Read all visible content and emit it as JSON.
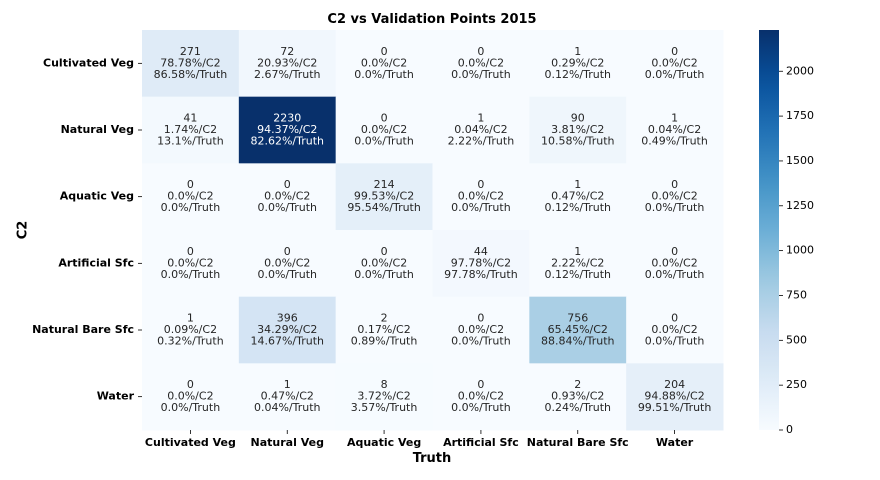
{
  "chart_data": {
    "type": "heatmap",
    "title": "C2 vs Validation Points 2015",
    "xlabel": "Truth",
    "ylabel": "C2",
    "x_categories": [
      "Cultivated Veg",
      "Natural Veg",
      "Aquatic Veg",
      "Artificial Sfc",
      "Natural Bare Sfc",
      "Water"
    ],
    "y_categories": [
      "Cultivated Veg",
      "Natural Veg",
      "Aquatic Veg",
      "Artificial Sfc",
      "Natural Bare Sfc",
      "Water"
    ],
    "values": [
      [
        271,
        72,
        0,
        0,
        1,
        0
      ],
      [
        41,
        2230,
        0,
        1,
        90,
        1
      ],
      [
        0,
        0,
        214,
        0,
        1,
        0
      ],
      [
        0,
        0,
        0,
        44,
        1,
        0
      ],
      [
        1,
        396,
        2,
        0,
        756,
        0
      ],
      [
        0,
        1,
        8,
        0,
        2,
        204
      ]
    ],
    "pct_c2": [
      [
        "78.78%/C2",
        "20.93%/C2",
        "0.0%/C2",
        "0.0%/C2",
        "0.29%/C2",
        "0.0%/C2"
      ],
      [
        "1.74%/C2",
        "94.37%/C2",
        "0.0%/C2",
        "0.04%/C2",
        "3.81%/C2",
        "0.04%/C2"
      ],
      [
        "0.0%/C2",
        "0.0%/C2",
        "99.53%/C2",
        "0.0%/C2",
        "0.47%/C2",
        "0.0%/C2"
      ],
      [
        "0.0%/C2",
        "0.0%/C2",
        "0.0%/C2",
        "97.78%/C2",
        "2.22%/C2",
        "0.0%/C2"
      ],
      [
        "0.09%/C2",
        "34.29%/C2",
        "0.17%/C2",
        "0.0%/C2",
        "65.45%/C2",
        "0.0%/C2"
      ],
      [
        "0.0%/C2",
        "0.47%/C2",
        "3.72%/C2",
        "0.0%/C2",
        "0.93%/C2",
        "94.88%/C2"
      ]
    ],
    "pct_truth": [
      [
        "86.58%/Truth",
        "2.67%/Truth",
        "0.0%/Truth",
        "0.0%/Truth",
        "0.12%/Truth",
        "0.0%/Truth"
      ],
      [
        "13.1%/Truth",
        "82.62%/Truth",
        "0.0%/Truth",
        "2.22%/Truth",
        "10.58%/Truth",
        "0.49%/Truth"
      ],
      [
        "0.0%/Truth",
        "0.0%/Truth",
        "95.54%/Truth",
        "0.0%/Truth",
        "0.12%/Truth",
        "0.0%/Truth"
      ],
      [
        "0.0%/Truth",
        "0.0%/Truth",
        "0.0%/Truth",
        "97.78%/Truth",
        "0.12%/Truth",
        "0.0%/Truth"
      ],
      [
        "0.32%/Truth",
        "14.67%/Truth",
        "0.89%/Truth",
        "0.0%/Truth",
        "88.84%/Truth",
        "0.0%/Truth"
      ],
      [
        "0.0%/Truth",
        "0.04%/Truth",
        "3.57%/Truth",
        "0.0%/Truth",
        "0.24%/Truth",
        "99.51%/Truth"
      ]
    ],
    "colorbar": {
      "colormap": "Blues",
      "vmin": 0,
      "vmax": 2230,
      "ticks": [
        0,
        250,
        500,
        750,
        1000,
        1250,
        1500,
        1750,
        2000
      ]
    },
    "colors": {
      "low": "#f7fbff",
      "high": "#08306b",
      "text_dark": "#262626",
      "text_light": "#ffffff"
    }
  }
}
